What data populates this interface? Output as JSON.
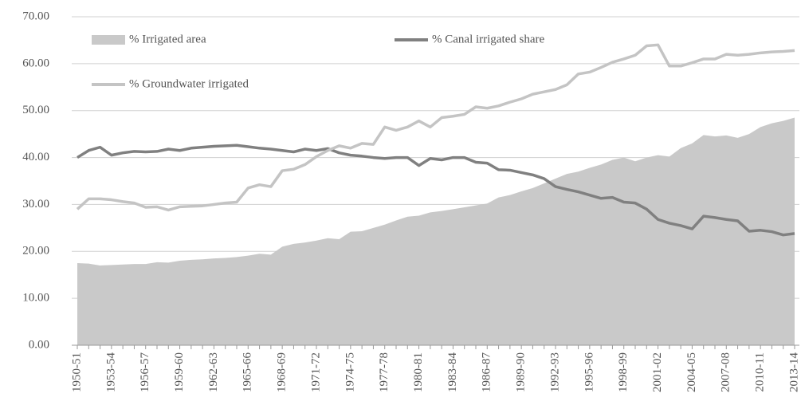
{
  "chart_data": {
    "type": "line",
    "categories": [
      "1950-51",
      null,
      null,
      "1953-54",
      null,
      null,
      "1956-57",
      null,
      null,
      "1959-60",
      null,
      null,
      "1962-63",
      null,
      null,
      "1965-66",
      null,
      null,
      "1968-69",
      null,
      null,
      "1971-72",
      null,
      null,
      "1974-75",
      null,
      null,
      "1977-78",
      null,
      null,
      "1980-81",
      null,
      null,
      "1983-84",
      null,
      null,
      "1986-87",
      null,
      null,
      "1989-90",
      null,
      null,
      "1992-93",
      null,
      null,
      "1995-96",
      null,
      null,
      "1998-99",
      null,
      null,
      "2001-02",
      null,
      null,
      "2004-05",
      null,
      null,
      "2007-08",
      null,
      null,
      "2010-11",
      null,
      null,
      "2013-14"
    ],
    "series": [
      {
        "name": "% Irrigated area",
        "kind": "area",
        "color": "#c9c9c9",
        "values": [
          17.5,
          17.4,
          17.0,
          17.1,
          17.2,
          17.3,
          17.3,
          17.7,
          17.6,
          18.0,
          18.2,
          18.3,
          18.5,
          18.6,
          18.8,
          19.1,
          19.5,
          19.3,
          21.0,
          21.6,
          21.9,
          22.3,
          22.8,
          22.6,
          24.2,
          24.3,
          25.0,
          25.7,
          26.6,
          27.4,
          27.6,
          28.3,
          28.6,
          29.0,
          29.4,
          29.8,
          30.2,
          31.5,
          32.0,
          32.8,
          33.5,
          34.5,
          35.5,
          36.5,
          37.0,
          37.8,
          38.5,
          39.5,
          40.0,
          39.2,
          40.0,
          40.5,
          40.2,
          42.0,
          43.0,
          44.8,
          44.5,
          44.7,
          44.2,
          45.0,
          46.5,
          47.3,
          47.8,
          48.5
        ]
      },
      {
        "name": "% Canal irrigated share",
        "kind": "line",
        "color": "#808080",
        "values": [
          40.0,
          41.5,
          42.2,
          40.5,
          41.0,
          41.3,
          41.2,
          41.3,
          41.8,
          41.5,
          42.0,
          42.2,
          42.4,
          42.5,
          42.6,
          42.3,
          42.0,
          41.8,
          41.5,
          41.2,
          41.8,
          41.5,
          41.9,
          41.0,
          40.5,
          40.3,
          40.0,
          39.8,
          40.0,
          40.0,
          38.3,
          39.8,
          39.5,
          40.0,
          40.0,
          39.0,
          38.8,
          37.4,
          37.3,
          36.8,
          36.3,
          35.5,
          33.8,
          33.2,
          32.7,
          32.0,
          31.3,
          31.5,
          30.5,
          30.3,
          29.0,
          26.8,
          26.0,
          25.5,
          24.8,
          27.5,
          27.2,
          26.8,
          26.5,
          24.3,
          24.5,
          24.2,
          23.5,
          23.8
        ]
      },
      {
        "name": "% Groundwater irrigated",
        "kind": "line",
        "color": "#c4c4c4",
        "values": [
          29.0,
          31.2,
          31.2,
          31.0,
          30.6,
          30.3,
          29.4,
          29.5,
          28.8,
          29.5,
          29.6,
          29.7,
          30.0,
          30.3,
          30.5,
          33.5,
          34.2,
          33.8,
          37.2,
          37.5,
          38.5,
          40.2,
          41.5,
          42.5,
          42.0,
          43.0,
          42.8,
          46.5,
          45.8,
          46.5,
          47.8,
          46.5,
          48.5,
          48.8,
          49.2,
          50.8,
          50.5,
          51.0,
          51.8,
          52.5,
          53.5,
          54.0,
          54.5,
          55.5,
          57.8,
          58.2,
          59.2,
          60.3,
          61.0,
          61.8,
          63.8,
          64.0,
          59.5,
          59.5,
          60.2,
          61.0,
          61.0,
          62.0,
          61.8,
          62.0,
          62.3,
          62.5,
          62.6,
          62.8
        ]
      }
    ],
    "ylim": [
      0,
      70
    ],
    "yticks": [
      {
        "value": 0,
        "label": "0.00"
      },
      {
        "value": 10,
        "label": "10.00"
      },
      {
        "value": 20,
        "label": "20.00"
      },
      {
        "value": 30,
        "label": "30.00"
      },
      {
        "value": 40,
        "label": "40.00"
      },
      {
        "value": 50,
        "label": "50.00"
      },
      {
        "value": 60,
        "label": "60.00"
      },
      {
        "value": 70,
        "label": "70.00"
      }
    ],
    "grid": true
  }
}
